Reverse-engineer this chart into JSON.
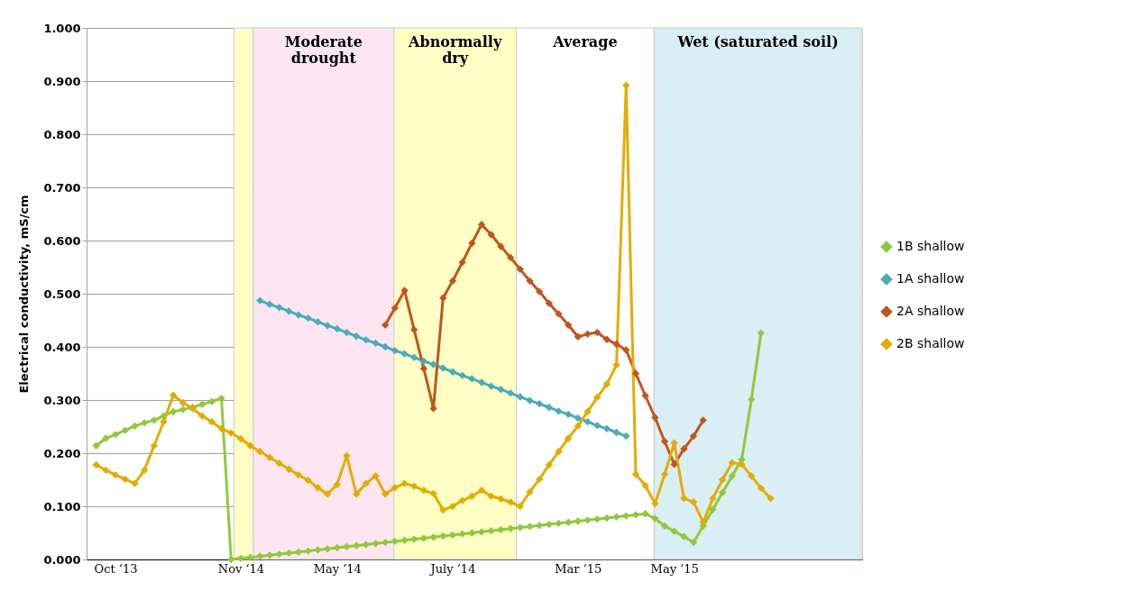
{
  "chart_data": {
    "type": "line",
    "ylabel": "Electrical conductivity, mS/cm",
    "categories": [
      null,
      null,
      "Oct ‘13",
      null,
      null,
      null,
      null,
      null,
      null,
      null,
      null,
      null,
      null,
      null,
      null,
      "Nov ‘14",
      null,
      null,
      null,
      null,
      null,
      null,
      null,
      null,
      null,
      "May ‘14",
      null,
      null,
      null,
      null,
      null,
      null,
      null,
      null,
      null,
      null,
      null,
      "July ‘14",
      null,
      null,
      null,
      null,
      null,
      null,
      null,
      null,
      null,
      null,
      null,
      null,
      "Mar  ‘15",
      null,
      null,
      null,
      null,
      null,
      null,
      null,
      null,
      null,
      "May ‘15",
      null,
      null,
      null,
      null,
      null,
      null,
      null,
      null,
      null,
      null,
      null,
      null,
      null,
      null,
      null,
      null,
      null,
      null,
      null
    ],
    "ylim": [
      0,
      1
    ],
    "yticks": [
      {
        "value": 0,
        "label": "0.000"
      },
      {
        "value": 0.1,
        "label": "0.100"
      },
      {
        "value": 0.2,
        "label": "0.200"
      },
      {
        "value": 0.3,
        "label": "0.300"
      },
      {
        "value": 0.4,
        "label": "0.400"
      },
      {
        "value": 0.5,
        "label": "0.500"
      },
      {
        "value": 0.6,
        "label": "0.600"
      },
      {
        "value": 0.7,
        "label": "0.700"
      },
      {
        "value": 0.8,
        "label": "0.800"
      },
      {
        "value": 0.9,
        "label": "0.900"
      },
      {
        "value": 1,
        "label": "1.000"
      }
    ],
    "grid": "y",
    "legend": "right",
    "marker": "diamond",
    "line_style": "solid",
    "annotations": [
      "Moderate\ndrought",
      "Abnormally\ndry",
      "Average",
      "Wet (saturated soil)"
    ],
    "series": [
      {
        "name": "1B shallow",
        "color": "#92c83e",
        "values": [
          0.214,
          0.228,
          0.235,
          0.243,
          0.251,
          0.257,
          0.262,
          0.27,
          0.278,
          0.282,
          0.286,
          0.292,
          0.297,
          0.303,
          0.0,
          0.002,
          0.004,
          0.006,
          0.008,
          0.01,
          0.012,
          0.014,
          0.016,
          0.018,
          0.02,
          0.022,
          0.024,
          0.026,
          0.028,
          0.03,
          0.032,
          0.034,
          0.036,
          0.038,
          0.04,
          0.042,
          0.044,
          0.046,
          0.048,
          0.05,
          0.052,
          0.054,
          0.056,
          0.058,
          0.06,
          0.062,
          0.064,
          0.066,
          0.068,
          0.07,
          0.072,
          0.074,
          0.076,
          0.078,
          0.08,
          0.082,
          0.084,
          0.086,
          0.077,
          0.063,
          0.053,
          0.043,
          0.032,
          0.063,
          0.094,
          0.126,
          0.157,
          0.188,
          0.301,
          0.426,
          null,
          null,
          null,
          null,
          null,
          null,
          null,
          null,
          null,
          null
        ]
      },
      {
        "name": "1A shallow",
        "color": "#4bacb9",
        "values": [
          null,
          null,
          null,
          null,
          null,
          null,
          null,
          null,
          null,
          null,
          null,
          null,
          null,
          null,
          null,
          null,
          null,
          0.487,
          0.48,
          0.474,
          0.467,
          0.46,
          0.454,
          0.447,
          0.44,
          0.434,
          0.427,
          0.42,
          0.413,
          0.407,
          0.4,
          0.393,
          0.387,
          0.38,
          0.373,
          0.367,
          0.36,
          0.353,
          0.346,
          0.34,
          0.333,
          0.326,
          0.32,
          0.313,
          0.306,
          0.299,
          0.293,
          0.286,
          0.279,
          0.273,
          0.266,
          0.259,
          0.252,
          0.246,
          0.239,
          0.232,
          null,
          null,
          null,
          null,
          null,
          null,
          null,
          null,
          null,
          null,
          null,
          null,
          null,
          null,
          null,
          null,
          null,
          null,
          null,
          null,
          null,
          null,
          null,
          null
        ]
      },
      {
        "name": "2A shallow",
        "color": "#c0561d",
        "values": [
          null,
          null,
          null,
          null,
          null,
          null,
          null,
          null,
          null,
          null,
          null,
          null,
          null,
          null,
          null,
          null,
          null,
          null,
          null,
          null,
          null,
          null,
          null,
          null,
          null,
          null,
          null,
          null,
          null,
          null,
          0.441,
          0.473,
          0.506,
          0.432,
          0.359,
          0.284,
          0.492,
          0.524,
          0.559,
          0.595,
          0.63,
          0.611,
          0.589,
          0.568,
          0.546,
          0.524,
          0.504,
          0.482,
          0.462,
          0.441,
          0.419,
          0.424,
          0.427,
          0.414,
          0.405,
          0.394,
          0.35,
          0.308,
          0.267,
          0.222,
          0.179,
          0.208,
          0.232,
          0.262,
          null,
          null,
          null,
          null,
          null,
          null,
          null,
          null,
          null,
          null,
          null,
          null,
          null,
          null,
          null,
          null
        ]
      },
      {
        "name": "2B shallow",
        "color": "#e3ac00",
        "values": [
          0.178,
          0.168,
          0.159,
          0.151,
          0.143,
          0.168,
          0.214,
          0.259,
          0.309,
          0.295,
          0.284,
          0.27,
          0.259,
          0.246,
          0.238,
          0.227,
          0.214,
          0.203,
          0.192,
          0.181,
          0.17,
          0.159,
          0.149,
          0.135,
          0.123,
          0.141,
          0.195,
          0.123,
          0.143,
          0.157,
          0.123,
          0.135,
          0.143,
          0.138,
          0.13,
          0.124,
          0.093,
          0.1,
          0.111,
          0.119,
          0.13,
          0.119,
          0.114,
          0.108,
          0.1,
          0.127,
          0.151,
          0.178,
          0.203,
          0.228,
          0.251,
          0.278,
          0.305,
          0.33,
          0.366,
          0.892,
          0.16,
          0.139,
          0.105,
          0.16,
          0.219,
          0.115,
          0.108,
          0.07,
          0.115,
          0.15,
          0.182,
          0.179,
          0.157,
          0.134,
          0.115,
          null,
          null,
          null,
          null,
          null,
          null,
          null,
          null,
          null
        ]
      }
    ]
  }
}
